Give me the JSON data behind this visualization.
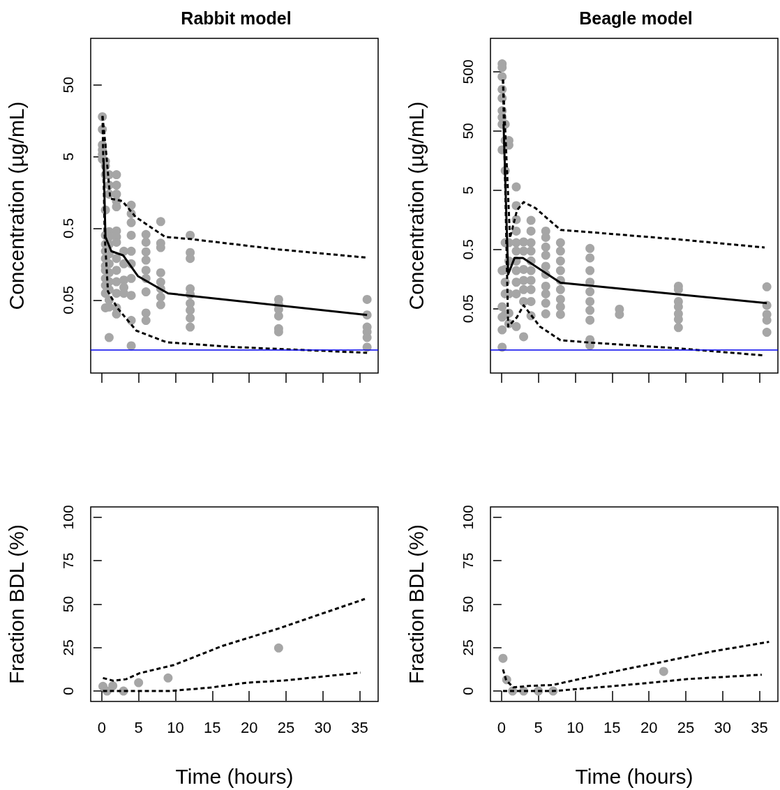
{
  "chart_data": [
    {
      "type": "scatter",
      "title": "Rabbit model",
      "ylabel": "Concentration (µg/mL)",
      "log": "y",
      "xlim": [
        -1.5,
        37.5
      ],
      "xticks": [
        0,
        5,
        10,
        15,
        20,
        25,
        30,
        35
      ],
      "ylim": [
        0.0048,
        223
      ],
      "yticks": [
        0.05,
        0.5,
        5,
        50
      ],
      "tick_labels": "y",
      "grid": false,
      "ref_lines": [
        {
          "axis": "y",
          "value": 0.01,
          "color": "#0000ee",
          "line_style": "solid"
        }
      ],
      "series": [
        {
          "type": "scatter",
          "marker": "circle",
          "color": "#a6a6a6",
          "x": [
            0.083,
            0.083,
            0.083,
            0.083,
            0.083,
            0.083,
            0.5,
            0.5,
            0.5,
            0.5,
            0.5,
            0.5,
            0.5,
            0.5,
            0.5,
            0.5,
            0.5,
            0.5,
            0.5,
            0.5,
            1,
            1,
            1,
            1,
            1,
            1,
            1,
            1,
            1,
            1,
            1,
            1,
            1,
            1,
            2,
            2,
            2,
            2,
            2,
            2,
            2,
            2,
            2,
            2,
            2,
            2,
            2,
            2,
            3,
            3,
            3,
            3,
            3,
            4,
            4,
            4,
            4,
            4,
            4,
            4,
            4,
            4,
            4,
            6,
            6,
            6,
            6,
            6,
            6,
            6,
            6,
            6,
            8,
            8,
            8,
            8,
            8,
            8,
            8,
            8,
            12,
            12,
            12,
            12,
            12,
            12,
            12,
            12,
            12,
            24,
            24,
            24,
            24,
            24,
            24,
            36,
            36,
            36,
            36,
            36,
            36
          ],
          "values": [
            18,
            12,
            7.3,
            6.2,
            5.4,
            4.6,
            4.3,
            3.7,
            2.8,
            0.9,
            0.4,
            0.3,
            0.24,
            0.19,
            0.15,
            0.13,
            0.1,
            0.08,
            0.062,
            0.039,
            2.8,
            2,
            1.5,
            0.45,
            0.38,
            0.3,
            0.22,
            0.16,
            0.12,
            0.09,
            0.07,
            0.05,
            0.04,
            0.015,
            2.8,
            2,
            1.5,
            1.2,
            1,
            0.46,
            0.38,
            0.32,
            0.19,
            0.13,
            0.09,
            0.062,
            0.039,
            0.032,
            0.24,
            0.16,
            0.095,
            0.075,
            0.062,
            1.05,
            0.8,
            0.6,
            0.4,
            0.24,
            0.16,
            0.1,
            0.058,
            0.026,
            0.0115,
            0.41,
            0.32,
            0.235,
            0.18,
            0.13,
            0.1,
            0.065,
            0.033,
            0.026,
            0.62,
            0.31,
            0.27,
            0.12,
            0.089,
            0.072,
            0.055,
            0.043,
            0.4,
            0.23,
            0.19,
            0.072,
            0.06,
            0.045,
            0.036,
            0.028,
            0.021,
            0.051,
            0.043,
            0.037,
            0.03,
            0.02,
            0.018,
            0.051,
            0.031,
            0.021,
            0.018,
            0.015,
            0.011
          ]
        },
        {
          "type": "line",
          "marker": "none",
          "line_style": "solid",
          "color": "#000000",
          "x": [
            0.25,
            0.5,
            1.3,
            2.9,
            4.9,
            9,
            36
          ],
          "values": [
            4.7,
            0.38,
            0.24,
            0.21,
            0.108,
            0.062,
            0.031
          ]
        },
        {
          "type": "line",
          "marker": "none",
          "line_style": "dashed",
          "color": "#000000",
          "x": [
            0.1,
            0.5,
            1.15,
            2.8,
            4.6,
            8.6,
            12,
            24,
            36
          ],
          "values": [
            18.4,
            7.3,
            1.3,
            1.2,
            0.72,
            0.38,
            0.355,
            0.254,
            0.195
          ]
        },
        {
          "type": "line",
          "marker": "none",
          "line_style": "dashed",
          "color": "#000000",
          "x": [
            0.1,
            0.4,
            0.84,
            2.1,
            4.7,
            8.8,
            17.7,
            36
          ],
          "values": [
            18.4,
            0.4,
            0.066,
            0.039,
            0.0187,
            0.0129,
            0.0111,
            0.0092
          ]
        }
      ]
    },
    {
      "type": "scatter",
      "title": "Beagle model",
      "ylabel": "Concentration (µg/mL)",
      "log": "y",
      "xlim": [
        -1.5,
        37.5
      ],
      "xticks": [
        0,
        5,
        10,
        15,
        20,
        25,
        30,
        35
      ],
      "ylim": [
        0.0041,
        1835
      ],
      "yticks": [
        0.05,
        0.5,
        5,
        50,
        500
      ],
      "tick_labels": "y",
      "grid": false,
      "ref_lines": [
        {
          "axis": "y",
          "value": 0.01,
          "color": "#0000ee",
          "line_style": "solid"
        }
      ],
      "series": [
        {
          "type": "scatter",
          "marker": "circle",
          "color": "#a6a6a6",
          "x": [
            0.083,
            0.083,
            0.083,
            0.083,
            0.083,
            0.083,
            0.083,
            0.083,
            0.083,
            0.083,
            0.083,
            0.083,
            0.083,
            0.083,
            0.5,
            0.5,
            0.5,
            0.5,
            0.5,
            0.5,
            0.5,
            0.5,
            1,
            1,
            1,
            1,
            1,
            1,
            1,
            2,
            2,
            2,
            2,
            2,
            2,
            2,
            2,
            2,
            2,
            2,
            3,
            3,
            3,
            3,
            3,
            3,
            3,
            4,
            4,
            4,
            4,
            4,
            4,
            4,
            4,
            4,
            4,
            6,
            6,
            6,
            6,
            6,
            6,
            6,
            6,
            6,
            6,
            8,
            8,
            8,
            8,
            8,
            8,
            8,
            8,
            8,
            12,
            12,
            12,
            12,
            12,
            12,
            12,
            12,
            12,
            12,
            16,
            16,
            24,
            24,
            24,
            24,
            24,
            24,
            24,
            36,
            36,
            36,
            36,
            36
          ],
          "values": [
            680,
            590,
            414,
            252,
            180,
            110,
            85,
            65,
            24,
            0.22,
            0.054,
            0.036,
            0.022,
            0.0112,
            65,
            34.5,
            10.7,
            0.65,
            0.23,
            0.14,
            0.089,
            0.04,
            34.5,
            29,
            0.65,
            0.32,
            0.089,
            0.042,
            0.028,
            5.7,
            2.75,
            1.6,
            1.02,
            0.65,
            0.47,
            0.32,
            0.22,
            0.14,
            0.089,
            0.025,
            0.67,
            0.47,
            0.23,
            0.15,
            0.105,
            0.066,
            0.0168,
            1.55,
            1.02,
            0.65,
            0.47,
            0.32,
            0.22,
            0.15,
            0.105,
            0.066,
            0.038,
            1.02,
            0.8,
            0.55,
            0.4,
            0.26,
            0.19,
            0.12,
            0.089,
            0.062,
            0.041,
            0.65,
            0.47,
            0.32,
            0.22,
            0.15,
            0.105,
            0.072,
            0.054,
            0.04,
            0.52,
            0.36,
            0.22,
            0.14,
            0.097,
            0.066,
            0.047,
            0.032,
            0.015,
            0.012,
            0.049,
            0.04,
            0.12,
            0.105,
            0.066,
            0.054,
            0.041,
            0.033,
            0.024,
            0.117,
            0.057,
            0.04,
            0.032,
            0.02
          ]
        },
        {
          "type": "line",
          "marker": "none",
          "line_style": "solid",
          "color": "#000000",
          "x": [
            0.28,
            0.9,
            1.77,
            2.9,
            8,
            24,
            36
          ],
          "values": [
            65,
            0.19,
            0.36,
            0.36,
            0.137,
            0.087,
            0.062
          ]
        },
        {
          "type": "line",
          "marker": "none",
          "line_style": "dashed",
          "color": "#000000",
          "x": [
            0.2,
            1.15,
            2.1,
            3,
            4.6,
            8,
            12,
            24,
            35.7
          ],
          "values": [
            370,
            0.78,
            2.3,
            3.15,
            2.5,
            1.07,
            0.98,
            0.74,
            0.54
          ]
        },
        {
          "type": "line",
          "marker": "none",
          "line_style": "dashed",
          "color": "#000000",
          "x": [
            0.2,
            0.9,
            2.1,
            3,
            5.2,
            8,
            12,
            24,
            35.7
          ],
          "values": [
            370,
            0.025,
            0.036,
            0.057,
            0.025,
            0.0147,
            0.0134,
            0.0107,
            0.0081
          ]
        }
      ]
    },
    {
      "type": "scatter",
      "xlabel": "Time (hours)",
      "ylabel": "Fraction BDL (%)",
      "xlim": [
        -1.5,
        37.5
      ],
      "xticks": [
        0,
        5,
        10,
        15,
        20,
        25,
        30,
        35
      ],
      "ylim": [
        -6,
        106
      ],
      "yticks": [
        0,
        25,
        50,
        75,
        100
      ],
      "grid": false,
      "series": [
        {
          "type": "scatter",
          "marker": "circle",
          "color": "#a6a6a6",
          "x": [
            0.16,
            0.72,
            1.5,
            2.95,
            5,
            9,
            24
          ],
          "values": [
            2.7,
            0,
            3,
            0,
            4.8,
            7.5,
            24.8
          ]
        },
        {
          "type": "line",
          "marker": "none",
          "line_style": "dashed",
          "color": "#000000",
          "x": [
            0.16,
            1.6,
            3.3,
            5.1,
            9.8,
            16.4,
            24,
            35.7
          ],
          "values": [
            7.5,
            5.9,
            6.8,
            10.2,
            15,
            26,
            36,
            53
          ]
        },
        {
          "type": "line",
          "marker": "none",
          "line_style": "dashed",
          "color": "#000000",
          "x": [
            0.16,
            9.2,
            14.8,
            19.7,
            24.9,
            35.1
          ],
          "values": [
            0,
            0,
            2,
            4.8,
            6.1,
            10.6
          ]
        }
      ]
    },
    {
      "type": "scatter",
      "xlabel": "Time (hours)",
      "ylabel": "Fraction BDL (%)",
      "xlim": [
        -1.5,
        37.5
      ],
      "xticks": [
        0,
        5,
        10,
        15,
        20,
        25,
        30,
        35
      ],
      "ylim": [
        -6,
        106
      ],
      "yticks": [
        0,
        25,
        50,
        75,
        100
      ],
      "grid": false,
      "series": [
        {
          "type": "scatter",
          "marker": "circle",
          "color": "#a6a6a6",
          "x": [
            0.2,
            0.7,
            1.5,
            3,
            5,
            7,
            22
          ],
          "values": [
            18.8,
            6.5,
            0,
            0,
            0,
            0,
            11.3
          ]
        },
        {
          "type": "line",
          "marker": "none",
          "line_style": "dashed",
          "color": "#000000",
          "x": [
            0.2,
            0.63,
            1.6,
            4,
            7,
            11.3,
            17.3,
            22,
            28.6,
            36.3
          ],
          "values": [
            12.4,
            6.2,
            2.1,
            3,
            3.5,
            7.6,
            13,
            16.9,
            22.8,
            28.3
          ]
        },
        {
          "type": "line",
          "marker": "none",
          "line_style": "dashed",
          "color": "#000000",
          "x": [
            0.2,
            7,
            12,
            18.6,
            25.3,
            35.3
          ],
          "values": [
            0,
            0,
            1.7,
            4.1,
            6.9,
            9.4
          ]
        }
      ]
    }
  ]
}
